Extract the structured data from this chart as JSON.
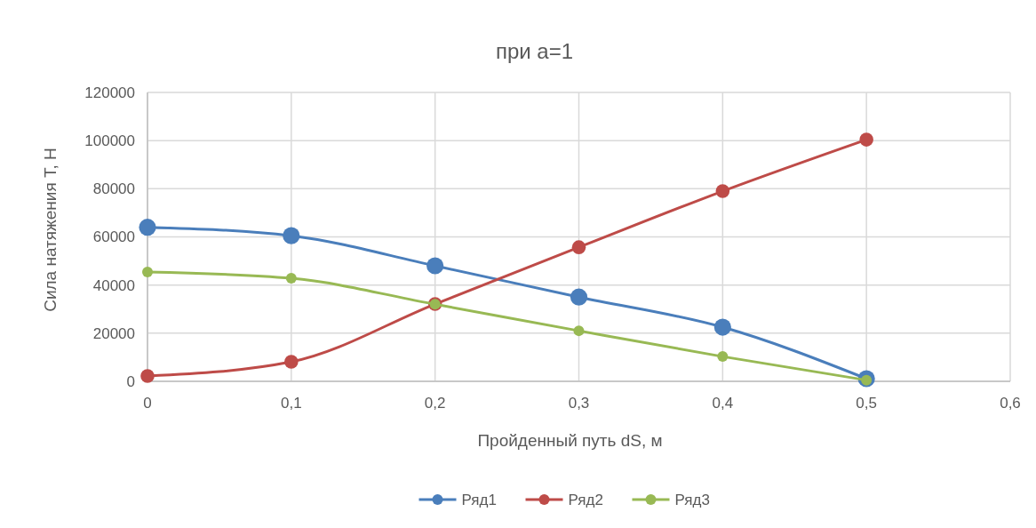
{
  "chart_data": {
    "type": "line",
    "title": "при а=1",
    "xlabel": "Пройденный путь dS, м",
    "ylabel": "Сила натяжения T, Н",
    "x": [
      0,
      0.1,
      0.2,
      0.3,
      0.4,
      0.5
    ],
    "series": [
      {
        "name": "Ряд1",
        "color": "#4a7ebb",
        "values": [
          64000,
          60500,
          48000,
          35000,
          22500,
          1100
        ]
      },
      {
        "name": "Ряд2",
        "color": "#be4b48",
        "values": [
          2200,
          8100,
          32100,
          55700,
          79000,
          100400
        ]
      },
      {
        "name": "Ряд3",
        "color": "#98b954",
        "values": [
          45400,
          42800,
          32000,
          21000,
          10300,
          500
        ]
      }
    ],
    "xlim": [
      0,
      0.6
    ],
    "xticks": [
      {
        "value": 0,
        "label": "0"
      },
      {
        "value": 0.1,
        "label": "0,1"
      },
      {
        "value": 0.2,
        "label": "0,2"
      },
      {
        "value": 0.3,
        "label": "0,3"
      },
      {
        "value": 0.4,
        "label": "0,4"
      },
      {
        "value": 0.5,
        "label": "0,5"
      },
      {
        "value": 0.6,
        "label": "0,6"
      }
    ],
    "ylim": [
      0,
      120000
    ],
    "yticks": [
      0,
      20000,
      40000,
      60000,
      80000,
      100000,
      120000
    ],
    "grid": true,
    "legend": "bottom",
    "marker": "circle",
    "line_style": "solid"
  }
}
